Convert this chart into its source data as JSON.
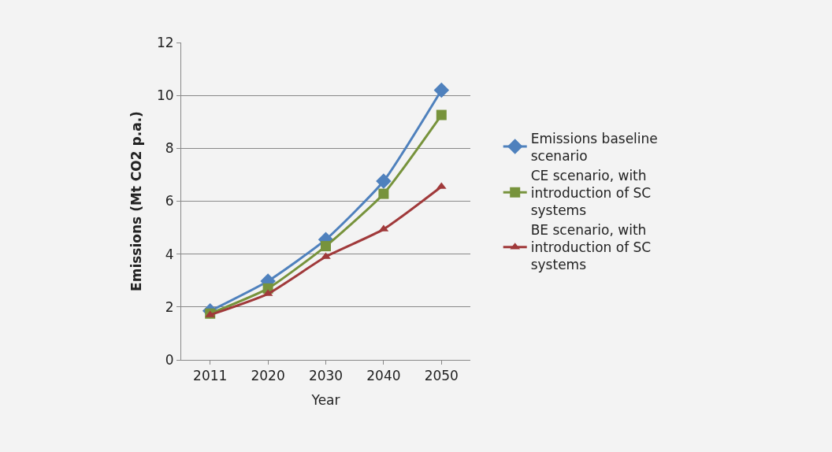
{
  "chart_data": {
    "type": "line",
    "xlabel": "Year",
    "ylabel": "Emissions (Mt CO2 p.a.)",
    "categories": [
      "2011",
      "2020",
      "2030",
      "2040",
      "2050"
    ],
    "series": [
      {
        "name": "Emissions baseline scenario",
        "color": "#4f81bd",
        "marker": "diamond",
        "values": [
          1.85,
          2.98,
          4.55,
          6.76,
          10.2
        ]
      },
      {
        "name": "CE scenario, with introduction of SC systems",
        "color": "#77933c",
        "marker": "square",
        "values": [
          1.75,
          2.7,
          4.3,
          6.28,
          9.26
        ]
      },
      {
        "name": "BE scenario, with introduction of SC systems",
        "color": "#a0393a",
        "marker": "triangle",
        "values": [
          1.7,
          2.5,
          3.9,
          4.94,
          6.55
        ]
      }
    ],
    "ylim": [
      0,
      12
    ],
    "yticks": [
      0,
      2,
      4,
      6,
      8,
      10,
      12
    ],
    "grid": "y",
    "legend": "right",
    "line_style": "solid"
  }
}
